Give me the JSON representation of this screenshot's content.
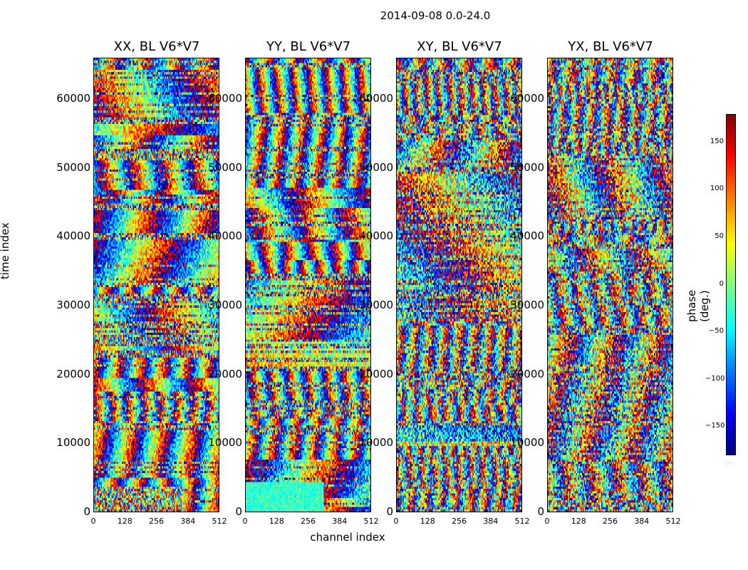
{
  "figure": {
    "title": "2014-09-08 0.0-24.0",
    "x_label": "channel index",
    "y_label": "time index",
    "colorbar_label": "phase (deg.)",
    "colorbar_ticks": [
      "150",
      "100",
      "50",
      "0",
      "−50",
      "−100",
      "−150"
    ],
    "colorbar_minor_label": "......"
  },
  "chart_data": [
    {
      "type": "heatmap",
      "title": "XX, BL V6*V7",
      "xlabel": "channel index",
      "ylabel": "time index",
      "xlim": [
        0,
        512
      ],
      "ylim": [
        0,
        66000
      ],
      "x_ticks": [
        0,
        128,
        256,
        384,
        512
      ],
      "y_ticks": [
        0,
        10000,
        20000,
        30000,
        40000,
        50000,
        60000
      ],
      "value_range": [
        -180,
        180
      ],
      "value_label": "phase (deg.)"
    },
    {
      "type": "heatmap",
      "title": "YY, BL V6*V7",
      "xlabel": "channel index",
      "ylabel": "",
      "xlim": [
        0,
        512
      ],
      "ylim": [
        0,
        66000
      ],
      "x_ticks": [
        0,
        128,
        256,
        384,
        512
      ],
      "y_ticks": [
        0,
        10000,
        20000,
        30000,
        40000,
        50000,
        60000
      ],
      "value_range": [
        -180,
        180
      ],
      "value_label": "phase (deg.)"
    },
    {
      "type": "heatmap",
      "title": "XY, BL V6*V7",
      "xlabel": "",
      "ylabel": "",
      "xlim": [
        0,
        512
      ],
      "ylim": [
        0,
        66000
      ],
      "x_ticks": [
        0,
        128,
        256,
        384,
        512
      ],
      "y_ticks": [
        0,
        10000,
        20000,
        30000,
        40000,
        50000,
        60000
      ],
      "value_range": [
        -180,
        180
      ],
      "value_label": "phase (deg.)"
    },
    {
      "type": "heatmap",
      "title": "YX, BL V6*V7",
      "xlabel": "",
      "ylabel": "",
      "xlim": [
        0,
        512
      ],
      "ylim": [
        0,
        66000
      ],
      "x_ticks": [
        0,
        128,
        256,
        384,
        512
      ],
      "y_ticks": [
        0,
        10000,
        20000,
        30000,
        40000,
        50000,
        60000
      ],
      "value_range": [
        -180,
        180
      ],
      "value_label": "phase (deg.)"
    }
  ]
}
